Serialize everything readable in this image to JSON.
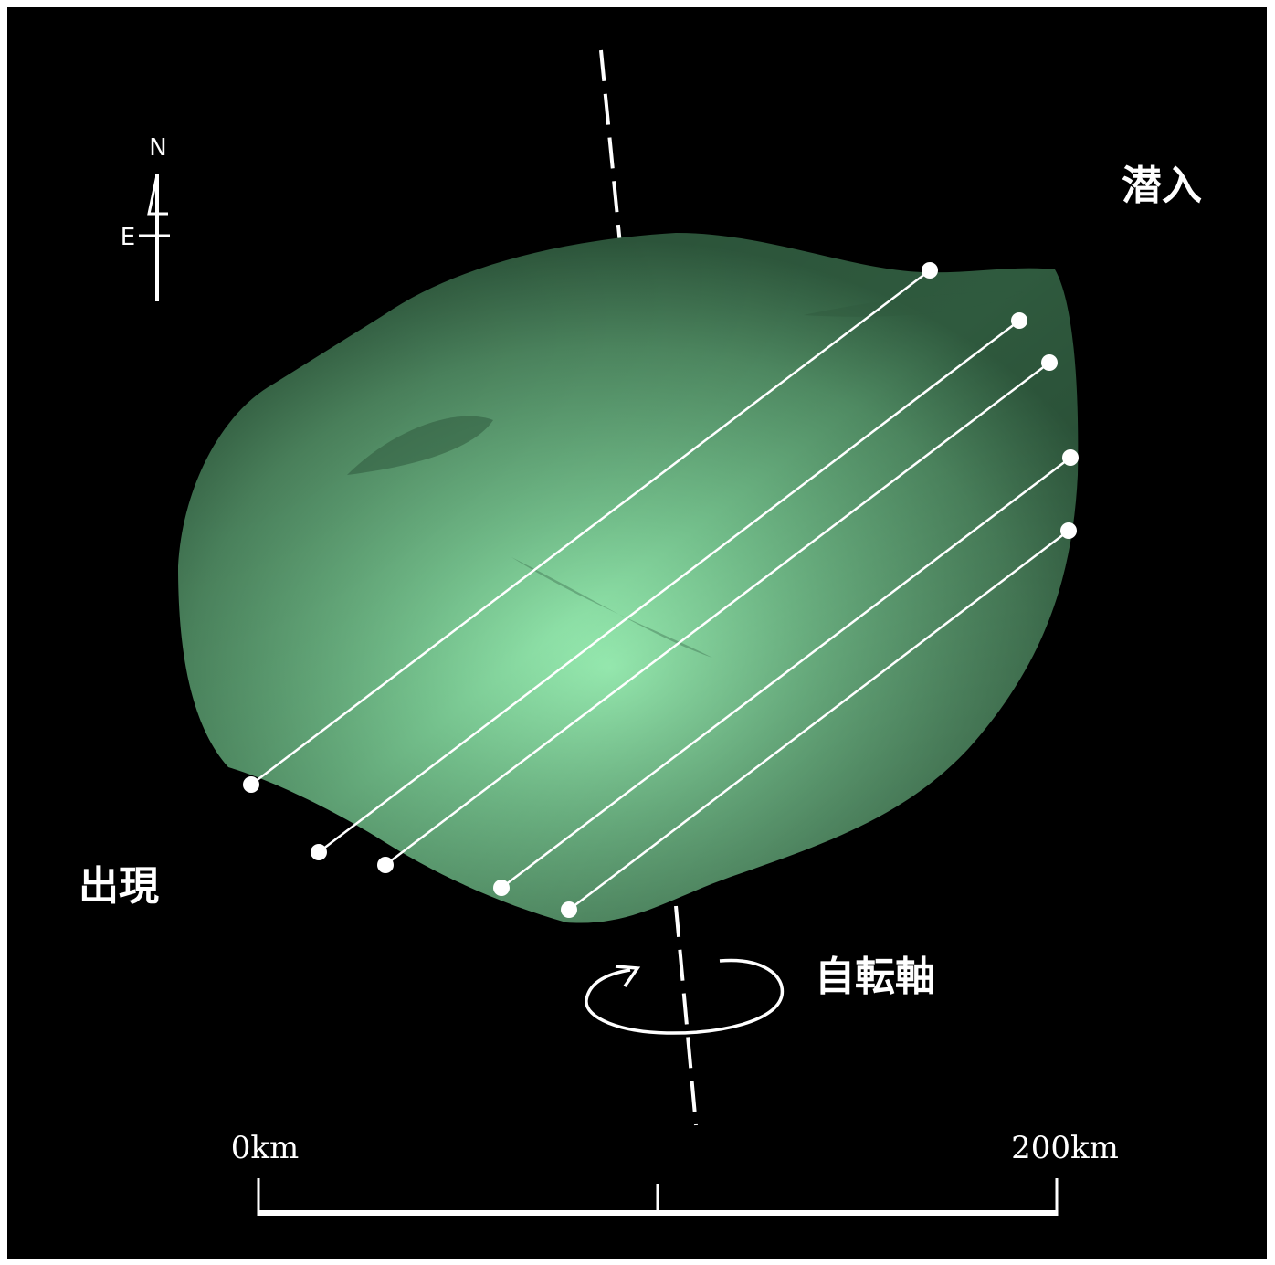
{
  "labels": {
    "ingress": "潜入",
    "egress": "出現",
    "rotation_axis": "自転軸"
  },
  "compass": {
    "north": "N",
    "east": "E"
  },
  "scale_bar": {
    "start_label": "0km",
    "end_label": "200km"
  },
  "chords_count": 5,
  "colors": {
    "background": "#000000",
    "asteroid_body": "#5e9e72",
    "asteroid_highlight": "#9af0b4",
    "chords": "#ffffff"
  },
  "icons": [
    "compass-icon",
    "rotation-arrow-icon"
  ]
}
